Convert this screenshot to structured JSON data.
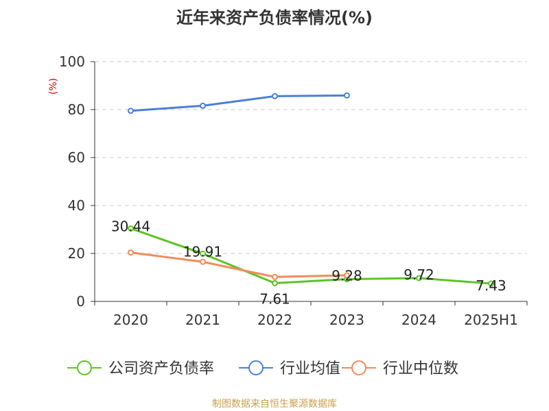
{
  "chart_data": {
    "type": "line",
    "title": "近年来资产负债率情况(%)",
    "ylabel": "(%)",
    "categories": [
      "2020",
      "2021",
      "2022",
      "2023",
      "2024",
      "2025H1"
    ],
    "yticks": [
      "0",
      "20",
      "40",
      "60",
      "80",
      "100"
    ],
    "ylim": [
      0,
      100
    ],
    "grid": true,
    "legend_position": "bottom",
    "series": [
      {
        "name": "公司资产负债率",
        "color": "#5bc424",
        "values": [
          30.44,
          19.91,
          7.61,
          9.28,
          9.72,
          7.43
        ],
        "labels": [
          "30.44",
          "19.91",
          "7.61",
          "9.28",
          "9.72",
          "7.43"
        ]
      },
      {
        "name": "行业均值",
        "color": "#4a7fd6",
        "values": [
          79.5,
          81.6,
          85.6,
          85.9,
          null,
          null
        ]
      },
      {
        "name": "行业中位数",
        "color": "#f28b5a",
        "values": [
          20.4,
          16.5,
          10.2,
          10.9,
          null,
          null
        ]
      }
    ]
  },
  "source": "制图数据来自恒生聚源数据库"
}
